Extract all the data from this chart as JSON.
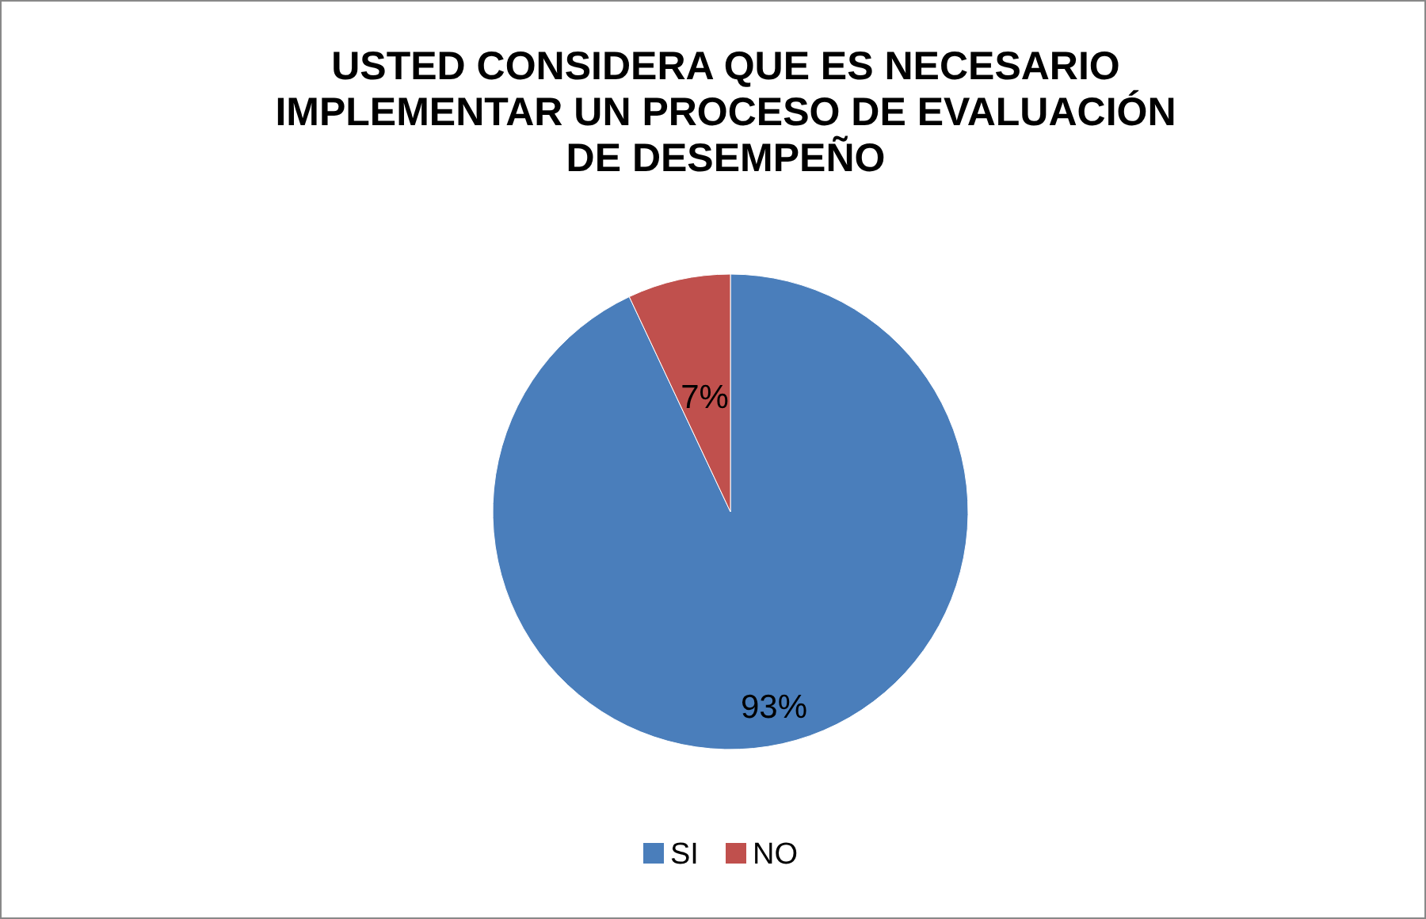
{
  "chart_data": {
    "type": "pie",
    "title": "USTED CONSIDERA QUE ES NECESARIO IMPLEMENTAR UN PROCESO DE EVALUACIÓN DE DESEMPEÑO",
    "categories": [
      "SI",
      "NO"
    ],
    "values": [
      93,
      7
    ],
    "colors": [
      "#4a7ebb",
      "#c0504d"
    ],
    "value_labels": [
      "93%",
      "7%"
    ],
    "legend": "bottom"
  }
}
